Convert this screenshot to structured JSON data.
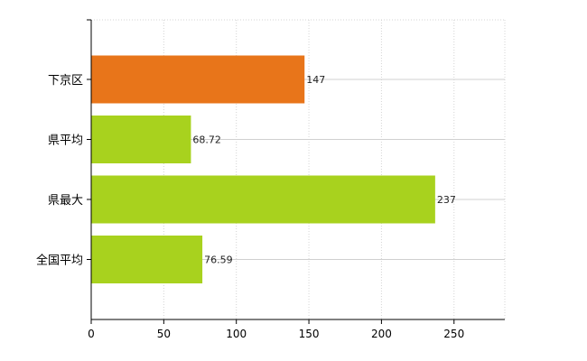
{
  "chart_data": {
    "type": "bar",
    "orientation": "horizontal",
    "categories": [
      "下京区",
      "県平均",
      "県最大",
      "全国平均"
    ],
    "values": [
      147,
      68.72,
      237,
      76.59
    ],
    "value_labels": [
      "147",
      "68.72",
      "237",
      "76.59"
    ],
    "colors": [
      "#e8751a",
      "#a8d21e",
      "#a8d21e",
      "#a8d21e"
    ],
    "xlim": [
      0,
      285
    ],
    "xticks": [
      0,
      50,
      100,
      150,
      200,
      250
    ],
    "xtick_labels": [
      "0",
      "50",
      "100",
      "150",
      "200",
      "250"
    ],
    "grid": true,
    "title": "",
    "xlabel": "",
    "ylabel": ""
  }
}
